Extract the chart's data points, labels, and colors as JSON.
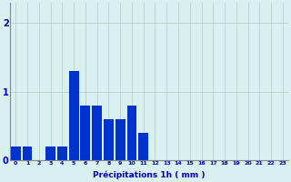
{
  "values": [
    0.2,
    0.2,
    0.0,
    0.2,
    0.2,
    1.3,
    0.8,
    0.8,
    0.6,
    0.6,
    0.8,
    0.4,
    0.0,
    0.0,
    0.0,
    0.0,
    0.0,
    0.0,
    0.0,
    0.0,
    0.0,
    0.0,
    0.0,
    0.0
  ],
  "bar_color": "#0033cc",
  "background_color": "#d8f0f0",
  "grid_color": "#b8c8c8",
  "xlabel": "Précipitations 1h ( mm )",
  "xlabel_color": "#0000bb",
  "tick_color": "#0000bb",
  "ylim": [
    0,
    2.3
  ],
  "yticks": [
    0,
    1,
    2
  ],
  "num_bars": 24,
  "tick_labels": [
    "0",
    "1",
    "2",
    "3",
    "4",
    "5",
    "6",
    "7",
    "8",
    "9",
    "10",
    "11",
    "12",
    "13",
    "14",
    "15",
    "16",
    "17",
    "18",
    "19",
    "20",
    "21",
    "22",
    "23"
  ]
}
